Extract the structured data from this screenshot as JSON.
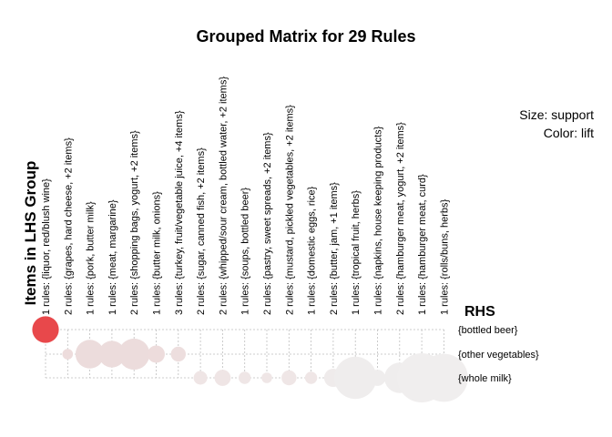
{
  "chart_data": {
    "type": "grouped-matrix",
    "title": "Grouped Matrix for 29 Rules",
    "size_legend": "Size: support",
    "color_legend": "Color: lift",
    "ylabel": "Items in LHS Group",
    "rhs_title": "RHS",
    "columns": [
      "1 rules: {liquor, red/blush wine}",
      "2 rules: {grapes, hard cheese, +2 items}",
      "1 rules: {pork, butter milk}",
      "1 rules: {meat, margarine}",
      "2 rules: {shopping bags, yogurt, +2 items}",
      "1 rules: {butter milk, onions}",
      "3 rules: {turkey, fruit/vegetable juice, +4 items}",
      "2 rules: {sugar, canned fish, +2 items}",
      "2 rules: {whipped/sour cream, bottled water, +2 items}",
      "1 rules: {soups, bottled beer}",
      "2 rules: {pastry, sweet spreads, +2 items}",
      "2 rules: {mustard, pickled vegetables, +2 items}",
      "1 rules: {domestic eggs, rice}",
      "2 rules: {butter, jam, +1 items}",
      "1 rules: {tropical fruit, herbs}",
      "1 rules: {napkins, house keeping products}",
      "2 rules: {hamburger meat, yogurt, +2 items}",
      "1 rules: {hamburger meat, curd}",
      "1 rules: {rolls/buns, herbs}"
    ],
    "rows": [
      "{bottled beer}",
      "{other vegetables}",
      "{whole milk}"
    ],
    "points": [
      {
        "col": 0,
        "row": 0,
        "support": 0.0019,
        "lift": 11.2,
        "color": "#e8484b"
      },
      {
        "col": 1,
        "row": 1,
        "support": 0.0003,
        "lift": 3.5,
        "color": "#eddcdc"
      },
      {
        "col": 2,
        "row": 1,
        "support": 0.0022,
        "lift": 3.6,
        "color": "#ecdcdc"
      },
      {
        "col": 3,
        "row": 1,
        "support": 0.0019,
        "lift": 3.6,
        "color": "#ecdcdc"
      },
      {
        "col": 4,
        "row": 1,
        "support": 0.0026,
        "lift": 3.6,
        "color": "#ecdcdc"
      },
      {
        "col": 5,
        "row": 1,
        "support": 0.0008,
        "lift": 3.5,
        "color": "#eddcdc"
      },
      {
        "col": 6,
        "row": 1,
        "support": 0.0006,
        "lift": 3.4,
        "color": "#eddede"
      },
      {
        "col": 7,
        "row": 2,
        "support": 0.0005,
        "lift": 2.6,
        "color": "#efe5e5"
      },
      {
        "col": 8,
        "row": 2,
        "support": 0.0007,
        "lift": 2.6,
        "color": "#efe5e5"
      },
      {
        "col": 9,
        "row": 2,
        "support": 0.0004,
        "lift": 2.5,
        "color": "#efe6e6"
      },
      {
        "col": 10,
        "row": 2,
        "support": 0.0003,
        "lift": 2.5,
        "color": "#efe6e6"
      },
      {
        "col": 11,
        "row": 2,
        "support": 0.0006,
        "lift": 2.5,
        "color": "#efe6e6"
      },
      {
        "col": 12,
        "row": 2,
        "support": 0.0004,
        "lift": 2.5,
        "color": "#efe6e6"
      },
      {
        "col": 13,
        "row": 2,
        "support": 0.0009,
        "lift": 2.2,
        "color": "#efebeb"
      },
      {
        "col": 14,
        "row": 2,
        "support": 0.0048,
        "lift": 2.1,
        "color": "#efeded"
      },
      {
        "col": 15,
        "row": 2,
        "support": 0.0007,
        "lift": 2.1,
        "color": "#efeded"
      },
      {
        "col": 16,
        "row": 2,
        "support": 0.0025,
        "lift": 2.1,
        "color": "#efeded"
      },
      {
        "col": 17,
        "row": 2,
        "support": 0.0065,
        "lift": 2.0,
        "color": "#f0eeee"
      },
      {
        "col": 18,
        "row": 2,
        "support": 0.0062,
        "lift": 2.0,
        "color": "#f0eeee"
      }
    ]
  }
}
